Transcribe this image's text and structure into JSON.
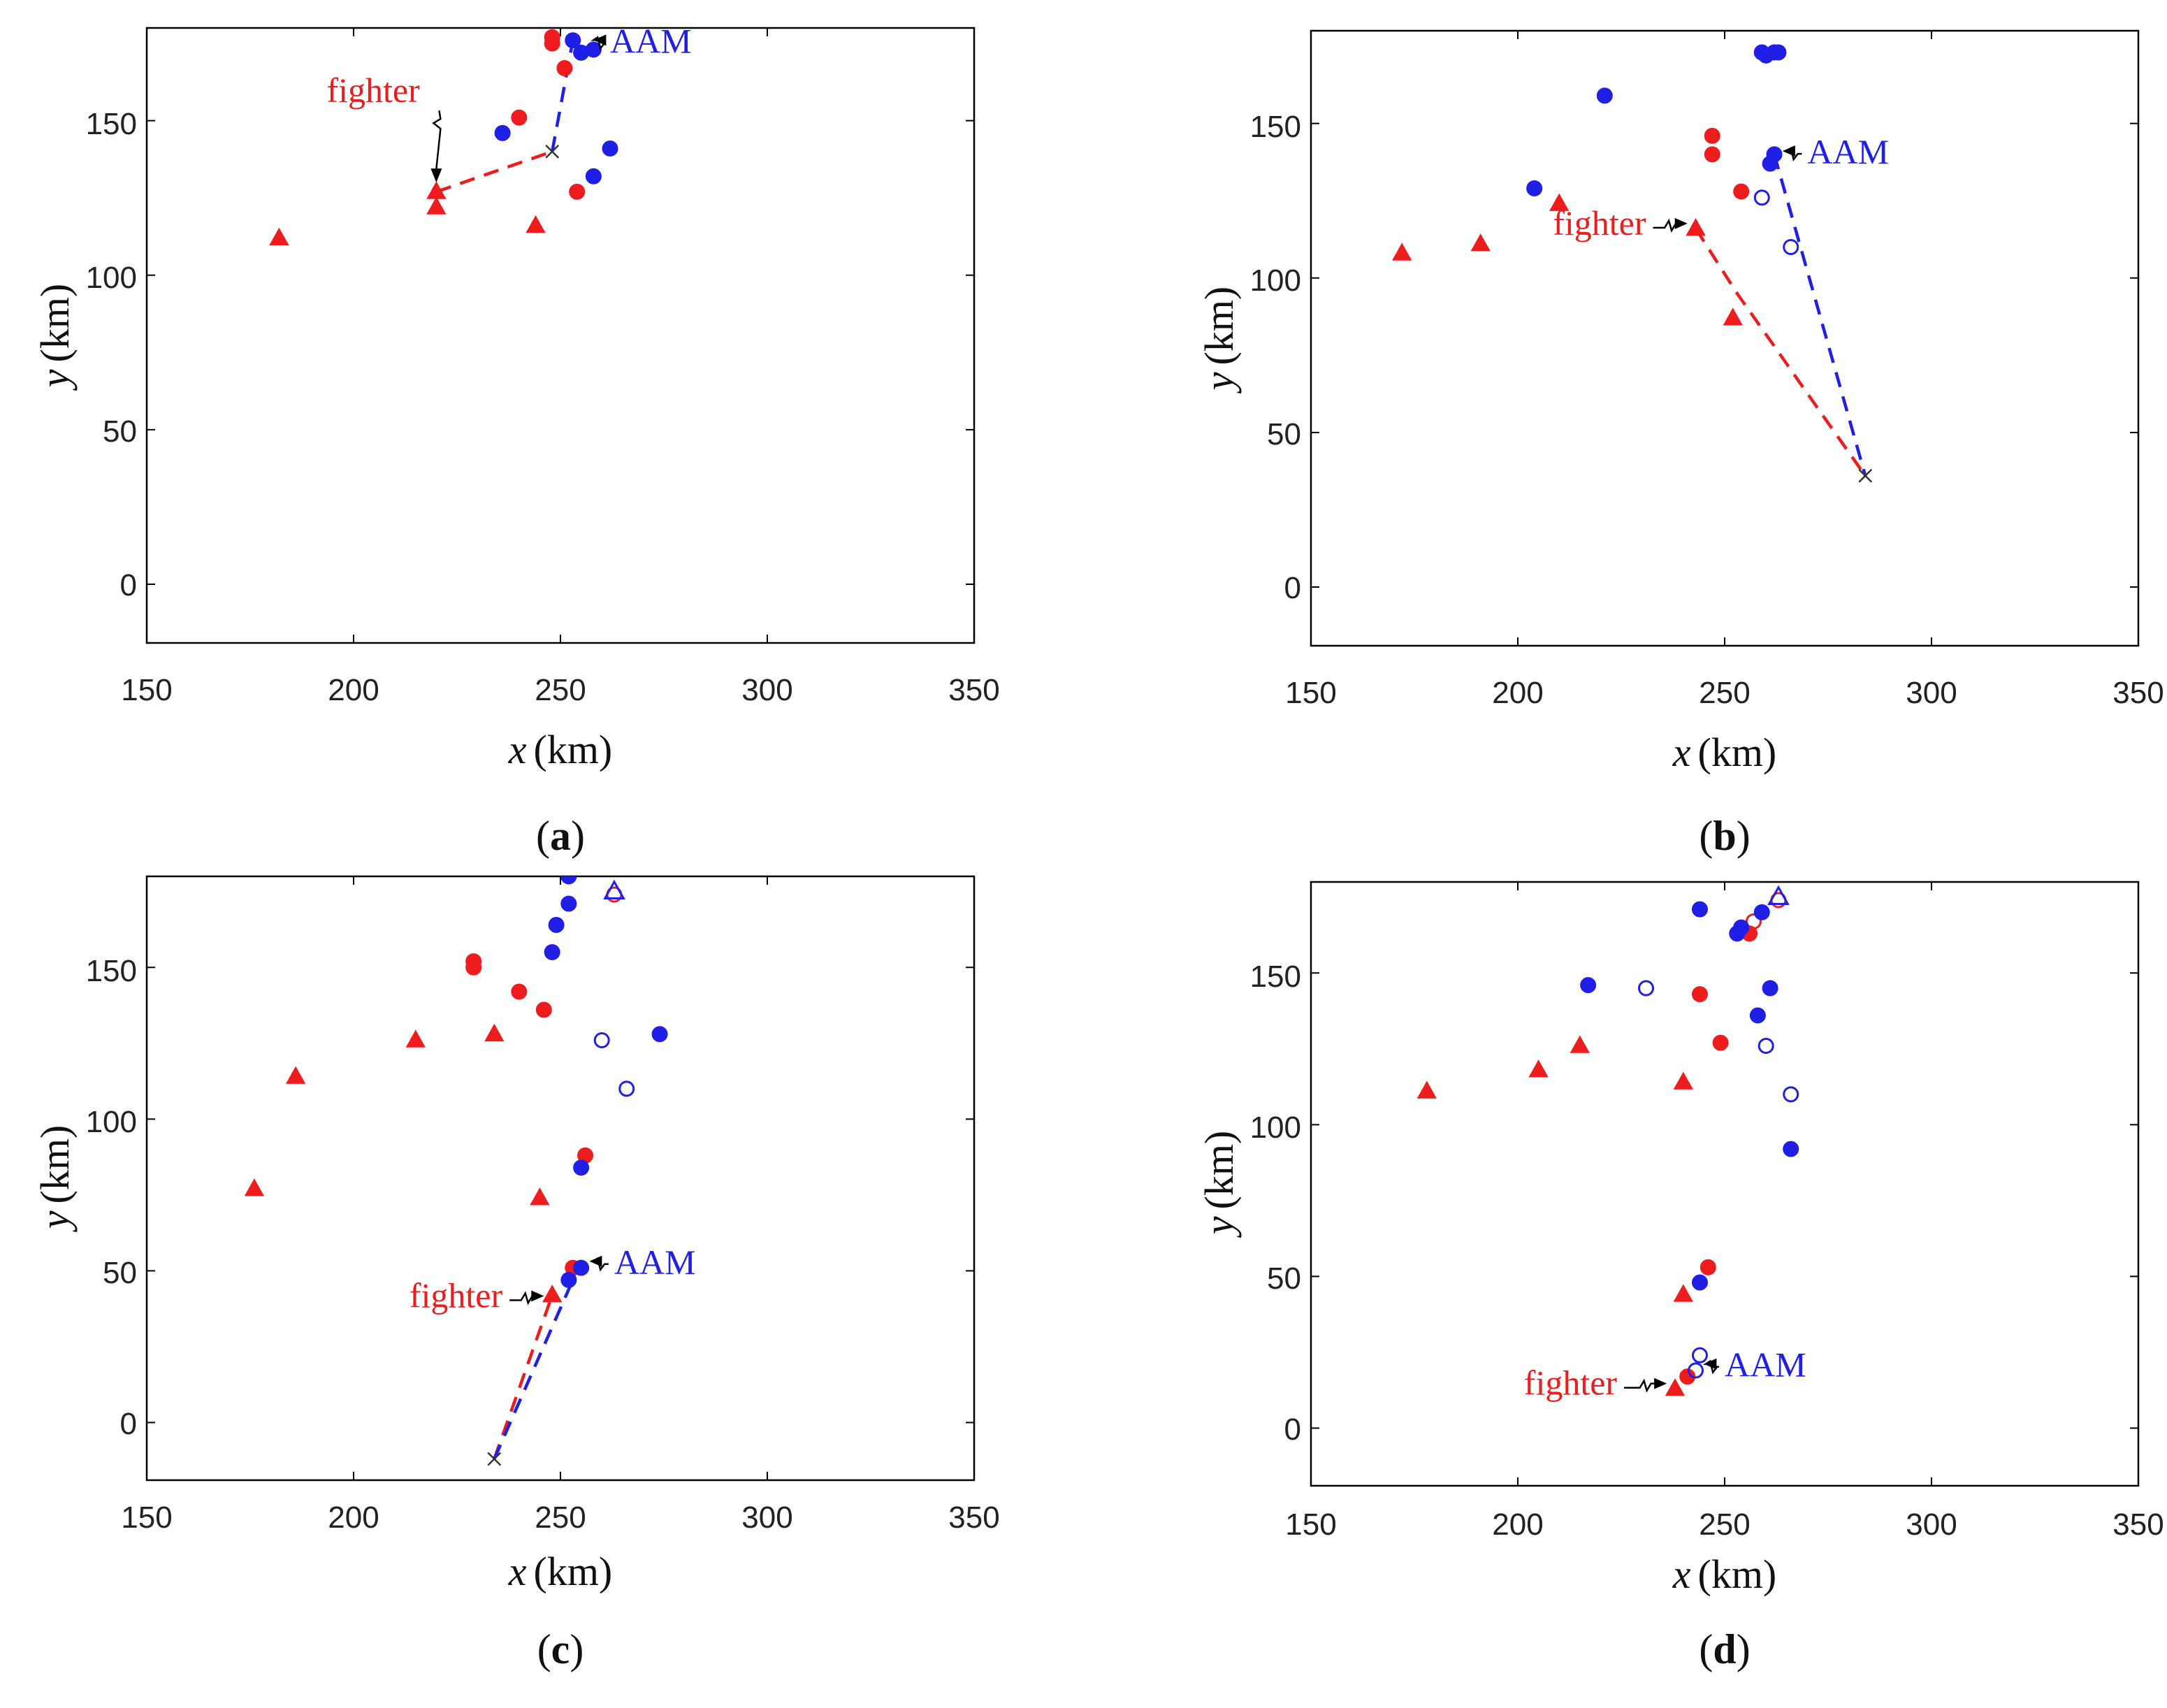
{
  "colors": {
    "red": "#ee1c1c",
    "blue": "#1f1fe6",
    "axis": "#000000",
    "cross": "#333333",
    "arrow": "#000000"
  },
  "chart_data": [
    {
      "type": "scatter",
      "caption_letter": "a",
      "xlabel_var": "x",
      "xlabel_unit": "(km)",
      "ylabel_var": "y",
      "ylabel_unit": "(km)",
      "xlim": [
        150,
        350
      ],
      "ylim": [
        -19,
        180
      ],
      "xticks": [
        "150",
        "200",
        "250",
        "300",
        "350"
      ],
      "yticks": [
        "0",
        "50",
        "100",
        "150"
      ],
      "xtick_values": [
        150,
        200,
        250,
        300,
        350
      ],
      "ytick_values": [
        0,
        50,
        100,
        150
      ],
      "series": [
        {
          "name": "red-triangles",
          "marker": "triangle",
          "color": "red",
          "fill": true,
          "points": [
            [
              182,
              112
            ],
            [
              220,
              127
            ],
            [
              220,
              122
            ],
            [
              244,
              116
            ]
          ]
        },
        {
          "name": "red-dots",
          "marker": "circle",
          "color": "red",
          "fill": true,
          "points": [
            [
              248,
              177
            ],
            [
              248,
              175
            ],
            [
              251,
              167
            ],
            [
              240,
              151
            ],
            [
              254,
              127
            ]
          ]
        },
        {
          "name": "blue-dots",
          "marker": "circle",
          "color": "blue",
          "fill": true,
          "points": [
            [
              253,
              176
            ],
            [
              255,
              172
            ],
            [
              258,
              173
            ],
            [
              236,
              146
            ],
            [
              262,
              141
            ],
            [
              258,
              132
            ]
          ]
        }
      ],
      "paths": [
        {
          "name": "fighter-path",
          "color": "red",
          "points": [
            [
              220,
              127
            ],
            [
              248,
              140
            ]
          ]
        },
        {
          "name": "aam-path",
          "color": "blue",
          "points": [
            [
              248,
              140
            ],
            [
              253,
              176
            ]
          ]
        }
      ],
      "crosses": [
        [
          248,
          140
        ]
      ],
      "annotations": [
        {
          "name": "fighter",
          "text": "fighter",
          "color": "red",
          "target": [
            220,
            130
          ],
          "text_at": [
            216,
            156
          ],
          "anchor": "end",
          "dir": "down"
        },
        {
          "name": "aam",
          "text": "AAM",
          "color": "blue",
          "target": [
            258,
            176
          ],
          "text_at": [
            262,
            172
          ],
          "anchor": "start",
          "dir": "left"
        }
      ]
    },
    {
      "type": "scatter",
      "caption_letter": "b",
      "xlabel_var": "x",
      "xlabel_unit": "(km)",
      "ylabel_var": "y",
      "ylabel_unit": "(km)",
      "xlim": [
        150,
        350
      ],
      "ylim": [
        -19,
        180
      ],
      "xticks": [
        "150",
        "200",
        "250",
        "300",
        "350"
      ],
      "yticks": [
        "0",
        "50",
        "100",
        "150"
      ],
      "xtick_values": [
        150,
        200,
        250,
        300,
        350
      ],
      "ytick_values": [
        0,
        50,
        100,
        150
      ],
      "series": [
        {
          "name": "red-triangles",
          "marker": "triangle",
          "color": "red",
          "fill": true,
          "points": [
            [
              172,
              108
            ],
            [
              191,
              111
            ],
            [
              210,
              124
            ],
            [
              243,
              116
            ],
            [
              252,
              87
            ]
          ]
        },
        {
          "name": "red-dots",
          "marker": "circle",
          "color": "red",
          "fill": true,
          "points": [
            [
              247,
              146
            ],
            [
              247,
              140
            ],
            [
              254,
              128
            ]
          ]
        },
        {
          "name": "blue-dots",
          "marker": "circle",
          "color": "blue",
          "fill": true,
          "points": [
            [
              259,
              173
            ],
            [
              260,
              172
            ],
            [
              262,
              173
            ],
            [
              263,
              173
            ],
            [
              221,
              159
            ],
            [
              204,
              129
            ],
            [
              262,
              140
            ],
            [
              261,
              137
            ]
          ]
        },
        {
          "name": "blue-rings",
          "marker": "circle",
          "color": "blue",
          "fill": false,
          "points": [
            [
              259,
              126
            ],
            [
              266,
              110
            ]
          ]
        }
      ],
      "paths": [
        {
          "name": "fighter-path",
          "color": "red",
          "points": [
            [
              243,
              116
            ],
            [
              253,
              95
            ],
            [
              263,
              76
            ],
            [
              274,
              55
            ],
            [
              284,
              36
            ]
          ]
        },
        {
          "name": "aam-path",
          "color": "blue",
          "points": [
            [
              262,
              140
            ],
            [
              284,
              36
            ]
          ]
        }
      ],
      "crosses": [
        [
          284,
          36
        ]
      ],
      "annotations": [
        {
          "name": "fighter",
          "text": "fighter",
          "color": "red",
          "target": [
            241,
            116
          ],
          "text_at": [
            231,
            114
          ],
          "anchor": "end",
          "dir": "right"
        },
        {
          "name": "aam",
          "text": "AAM",
          "color": "blue",
          "target": [
            264,
            141
          ],
          "text_at": [
            270,
            137
          ],
          "anchor": "start",
          "dir": "left"
        }
      ]
    },
    {
      "type": "scatter",
      "caption_letter": "c",
      "xlabel_var": "x",
      "xlabel_unit": "(km)",
      "ylabel_var": "y",
      "ylabel_unit": "(km)",
      "xlim": [
        150,
        350
      ],
      "ylim": [
        -19,
        180
      ],
      "xticks": [
        "150",
        "200",
        "250",
        "300",
        "350"
      ],
      "yticks": [
        "0",
        "50",
        "100",
        "150"
      ],
      "xtick_values": [
        150,
        200,
        250,
        300,
        350
      ],
      "ytick_values": [
        0,
        50,
        100,
        150
      ],
      "series": [
        {
          "name": "red-triangles",
          "marker": "triangle",
          "color": "red",
          "fill": true,
          "points": [
            [
              176,
              77
            ],
            [
              186,
              114
            ],
            [
              215,
              126
            ],
            [
              234,
              128
            ],
            [
              245,
              74
            ],
            [
              248,
              42
            ]
          ]
        },
        {
          "name": "red-rings",
          "marker": "circle",
          "color": "red",
          "fill": false,
          "points": [
            [
              263,
              174
            ]
          ]
        },
        {
          "name": "blue-ring-triangles",
          "marker": "triangle",
          "color": "blue",
          "fill": false,
          "points": [
            [
              263,
              175
            ]
          ]
        },
        {
          "name": "red-dots",
          "marker": "circle",
          "color": "red",
          "fill": true,
          "points": [
            [
              229,
              152
            ],
            [
              229,
              150
            ],
            [
              240,
              142
            ],
            [
              246,
              136
            ],
            [
              256,
              88
            ],
            [
              253,
              51
            ]
          ]
        },
        {
          "name": "blue-dots",
          "marker": "circle",
          "color": "blue",
          "fill": true,
          "points": [
            [
              252,
              180
            ],
            [
              252,
              171
            ],
            [
              249,
              164
            ],
            [
              248,
              155
            ],
            [
              274,
              128
            ],
            [
              255,
              84
            ],
            [
              255,
              51
            ],
            [
              252,
              47
            ]
          ]
        },
        {
          "name": "blue-rings",
          "marker": "circle",
          "color": "blue",
          "fill": false,
          "points": [
            [
              260,
              126
            ],
            [
              266,
              110
            ]
          ]
        }
      ],
      "paths": [
        {
          "name": "fighter-path",
          "color": "red",
          "points": [
            [
              234,
              -12
            ],
            [
              248,
              42
            ]
          ]
        },
        {
          "name": "aam-path",
          "color": "blue",
          "points": [
            [
              234,
              -12
            ],
            [
              253,
              47
            ]
          ]
        }
      ],
      "crosses": [
        [
          234,
          -12
        ]
      ],
      "annotations": [
        {
          "name": "fighter",
          "text": "fighter",
          "color": "red",
          "target": [
            246,
            40
          ],
          "text_at": [
            236,
            38
          ],
          "anchor": "end",
          "dir": "right"
        },
        {
          "name": "aam",
          "text": "AAM",
          "color": "blue",
          "target": [
            257,
            51
          ],
          "text_at": [
            263,
            49
          ],
          "anchor": "start",
          "dir": "left"
        }
      ]
    },
    {
      "type": "scatter",
      "caption_letter": "d",
      "xlabel_var": "x",
      "xlabel_unit": "(km)",
      "ylabel_var": "y",
      "ylabel_unit": "(km)",
      "xlim": [
        150,
        350
      ],
      "ylim": [
        -19,
        180
      ],
      "xticks": [
        "150",
        "200",
        "250",
        "300",
        "350"
      ],
      "yticks": [
        "0",
        "50",
        "100",
        "150"
      ],
      "xtick_values": [
        150,
        200,
        250,
        300,
        350
      ],
      "ytick_values": [
        0,
        50,
        100,
        150
      ],
      "series": [
        {
          "name": "red-triangles",
          "marker": "triangle",
          "color": "red",
          "fill": true,
          "points": [
            [
              178,
              111
            ],
            [
              205,
              118
            ],
            [
              215,
              126
            ],
            [
              240,
              114
            ],
            [
              240,
              44
            ],
            [
              238,
              13
            ]
          ]
        },
        {
          "name": "red-rings",
          "marker": "circle",
          "color": "red",
          "fill": false,
          "points": [
            [
              257,
              167
            ],
            [
              263,
              174
            ]
          ]
        },
        {
          "name": "blue-ring-triangles",
          "marker": "triangle",
          "color": "blue",
          "fill": false,
          "points": [
            [
              263,
              175
            ]
          ]
        },
        {
          "name": "red-dots",
          "marker": "circle",
          "color": "red",
          "fill": true,
          "points": [
            [
              256,
              163
            ],
            [
              244,
              143
            ],
            [
              249,
              127
            ],
            [
              246,
              53
            ],
            [
              241,
              17
            ]
          ]
        },
        {
          "name": "blue-dots",
          "marker": "circle",
          "color": "blue",
          "fill": true,
          "points": [
            [
              244,
              171
            ],
            [
              259,
              170
            ],
            [
              253,
              163
            ],
            [
              254,
              165
            ],
            [
              217,
              146
            ],
            [
              261,
              145
            ],
            [
              258,
              136
            ],
            [
              266,
              92
            ],
            [
              244,
              48
            ]
          ]
        },
        {
          "name": "blue-rings",
          "marker": "circle",
          "color": "blue",
          "fill": false,
          "points": [
            [
              231,
              145
            ],
            [
              260,
              126
            ],
            [
              266,
              110
            ],
            [
              244,
              24
            ],
            [
              243,
              19
            ]
          ]
        }
      ],
      "paths": [],
      "crosses": [],
      "annotations": [
        {
          "name": "fighter",
          "text": "fighter",
          "color": "red",
          "target": [
            236,
            13
          ],
          "text_at": [
            224,
            11
          ],
          "anchor": "end",
          "dir": "right"
        },
        {
          "name": "aam",
          "text": "AAM",
          "color": "blue",
          "target": [
            245,
            19
          ],
          "text_at": [
            250,
            17
          ],
          "anchor": "start",
          "dir": "left"
        }
      ]
    }
  ]
}
